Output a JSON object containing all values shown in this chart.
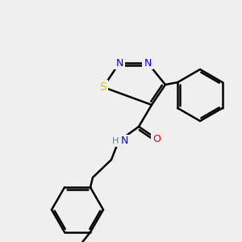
{
  "bg_color": "#efefef",
  "bond_color": "#000000",
  "bond_lw": 1.8,
  "atom_colors": {
    "N": "#0000ff",
    "S": "#cccc00",
    "O": "#ff0000",
    "C": "#000000",
    "H": "#4a8a8a"
  },
  "font_size": 9,
  "label_font_size": 9
}
